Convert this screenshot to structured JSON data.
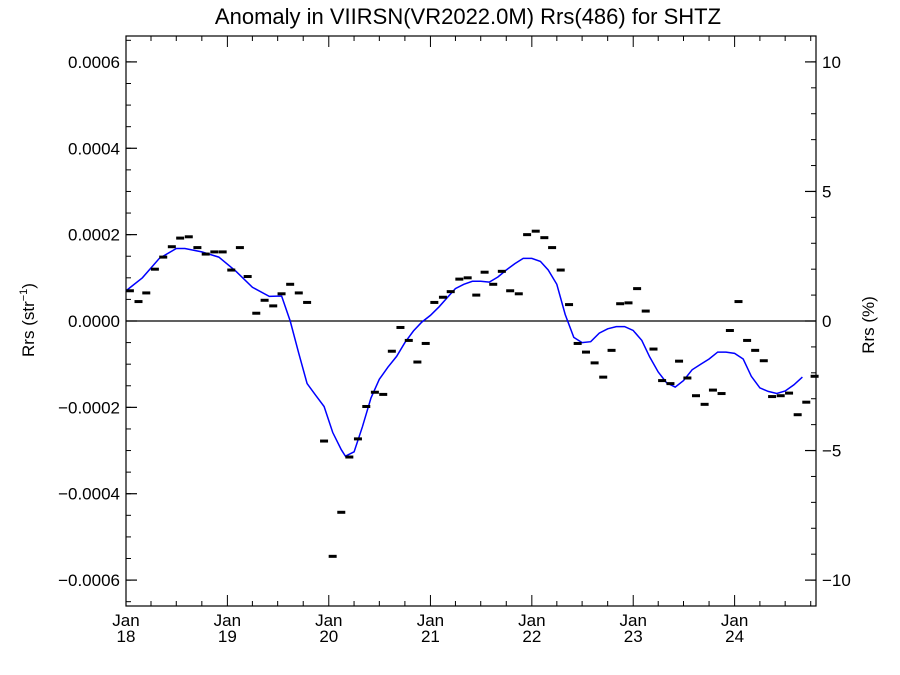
{
  "chart_data": {
    "type": "scatter",
    "title": "Anomaly in VIIRSN(VR2022.0M) Rrs(486) for SHTZ",
    "ylabel_left": {
      "base": "Rrs (str",
      "sup": "−1",
      "tail": ")"
    },
    "ylabel_right": "Rrs (%)",
    "xlabel": "",
    "x_ticks": [
      {
        "x": "2018-01-01",
        "month": "Jan",
        "year": "18"
      },
      {
        "x": "2019-01-01",
        "month": "Jan",
        "year": "19"
      },
      {
        "x": "2020-01-01",
        "month": "Jan",
        "year": "20"
      },
      {
        "x": "2021-01-01",
        "month": "Jan",
        "year": "21"
      },
      {
        "x": "2022-01-01",
        "month": "Jan",
        "year": "22"
      },
      {
        "x": "2023-01-01",
        "month": "Jan",
        "year": "23"
      },
      {
        "x": "2024-01-01",
        "month": "Jan",
        "year": "24"
      }
    ],
    "xlim": [
      "2018-01-01",
      "2024-10-20"
    ],
    "ylim_left": [
      -0.00066,
      0.00066
    ],
    "ylim_right": [
      -11,
      11
    ],
    "y_ticks_left": [
      {
        "v": 0.0006,
        "label": "0.0006"
      },
      {
        "v": 0.0004,
        "label": "0.0004"
      },
      {
        "v": 0.0002,
        "label": "0.0002"
      },
      {
        "v": 0.0,
        "label": "0.0000"
      },
      {
        "v": -0.0002,
        "label": "−0.0002"
      },
      {
        "v": -0.0004,
        "label": "−0.0004"
      },
      {
        "v": -0.0006,
        "label": "−0.0006"
      }
    ],
    "y_ticks_right": [
      {
        "v": 10,
        "label": "10"
      },
      {
        "v": 5,
        "label": "5"
      },
      {
        "v": 0,
        "label": "0"
      },
      {
        "v": -5,
        "label": "−5"
      },
      {
        "v": -10,
        "label": "−10"
      }
    ],
    "zero_line": true,
    "grid": false,
    "series": [
      {
        "kind": "monthly-anomaly",
        "marker": "dash",
        "color": "#000000",
        "points": [
          [
            "2018-01-15",
            7e-05
          ],
          [
            "2018-02-15",
            4.5e-05
          ],
          [
            "2018-03-15",
            6.5e-05
          ],
          [
            "2018-04-15",
            0.00012
          ],
          [
            "2018-05-15",
            0.000148
          ],
          [
            "2018-06-15",
            0.000172
          ],
          [
            "2018-07-15",
            0.000192
          ],
          [
            "2018-08-15",
            0.000195
          ],
          [
            "2018-09-15",
            0.00017
          ],
          [
            "2018-10-15",
            0.000155
          ],
          [
            "2018-11-15",
            0.00016
          ],
          [
            "2018-12-15",
            0.00016
          ],
          [
            "2019-01-15",
            0.000118
          ],
          [
            "2019-02-15",
            0.00017
          ],
          [
            "2019-03-15",
            0.000103
          ],
          [
            "2019-04-15",
            1.8e-05
          ],
          [
            "2019-05-15",
            4.8e-05
          ],
          [
            "2019-06-15",
            3.5e-05
          ],
          [
            "2019-07-15",
            6.3e-05
          ],
          [
            "2019-08-15",
            8.5e-05
          ],
          [
            "2019-09-15",
            6.5e-05
          ],
          [
            "2019-10-15",
            4.3e-05
          ],
          [
            "2019-12-15",
            -0.000278
          ],
          [
            "2020-01-15",
            -0.000545
          ],
          [
            "2020-02-15",
            -0.000443
          ],
          [
            "2020-03-15",
            -0.000315
          ],
          [
            "2020-04-15",
            -0.000273
          ],
          [
            "2020-05-15",
            -0.000198
          ],
          [
            "2020-06-15",
            -0.000165
          ],
          [
            "2020-07-15",
            -0.00017
          ],
          [
            "2020-08-15",
            -7e-05
          ],
          [
            "2020-09-15",
            -1.5e-05
          ],
          [
            "2020-10-15",
            -4.5e-05
          ],
          [
            "2020-11-15",
            -9.5e-05
          ],
          [
            "2020-12-15",
            -5.2e-05
          ],
          [
            "2021-01-15",
            4.3e-05
          ],
          [
            "2021-02-15",
            5.5e-05
          ],
          [
            "2021-03-15",
            6.8e-05
          ],
          [
            "2021-04-15",
            9.7e-05
          ],
          [
            "2021-05-15",
            0.0001
          ],
          [
            "2021-06-15",
            6e-05
          ],
          [
            "2021-07-15",
            0.000113
          ],
          [
            "2021-08-15",
            8.5e-05
          ],
          [
            "2021-09-15",
            0.000115
          ],
          [
            "2021-10-15",
            7e-05
          ],
          [
            "2021-11-15",
            6.3e-05
          ],
          [
            "2021-12-15",
            0.0002
          ],
          [
            "2022-01-15",
            0.000208
          ],
          [
            "2022-02-15",
            0.000193
          ],
          [
            "2022-03-15",
            0.00017
          ],
          [
            "2022-04-15",
            0.000118
          ],
          [
            "2022-05-15",
            3.8e-05
          ],
          [
            "2022-06-15",
            -5.2e-05
          ],
          [
            "2022-07-15",
            -7.2e-05
          ],
          [
            "2022-08-15",
            -9.7e-05
          ],
          [
            "2022-09-15",
            -0.00013
          ],
          [
            "2022-10-15",
            -6.8e-05
          ],
          [
            "2022-11-15",
            4e-05
          ],
          [
            "2022-12-15",
            4.2e-05
          ],
          [
            "2023-01-15",
            7.5e-05
          ],
          [
            "2023-02-15",
            2.3e-05
          ],
          [
            "2023-03-15",
            -6.5e-05
          ],
          [
            "2023-04-15",
            -0.000138
          ],
          [
            "2023-05-15",
            -0.000145
          ],
          [
            "2023-06-15",
            -9.3e-05
          ],
          [
            "2023-07-15",
            -0.000132
          ],
          [
            "2023-08-15",
            -0.000173
          ],
          [
            "2023-09-15",
            -0.000193
          ],
          [
            "2023-10-15",
            -0.00016
          ],
          [
            "2023-11-15",
            -0.000168
          ],
          [
            "2023-12-15",
            -2.2e-05
          ],
          [
            "2024-01-15",
            4.5e-05
          ],
          [
            "2024-02-15",
            -4.5e-05
          ],
          [
            "2024-03-15",
            -6.8e-05
          ],
          [
            "2024-04-15",
            -9.2e-05
          ],
          [
            "2024-05-15",
            -0.000175
          ],
          [
            "2024-06-15",
            -0.000173
          ],
          [
            "2024-07-15",
            -0.000167
          ],
          [
            "2024-08-15",
            -0.000217
          ],
          [
            "2024-09-15",
            -0.000188
          ],
          [
            "2024-10-15",
            -0.000128
          ]
        ]
      },
      {
        "kind": "smoothed",
        "marker": "line",
        "color": "#0000ff",
        "points": [
          [
            "2018-01-01",
            7e-05
          ],
          [
            "2018-03-01",
            0.0001
          ],
          [
            "2018-05-01",
            0.000145
          ],
          [
            "2018-07-01",
            0.000168
          ],
          [
            "2018-08-01",
            0.000168
          ],
          [
            "2018-10-01",
            0.00016
          ],
          [
            "2018-12-01",
            0.000148
          ],
          [
            "2019-02-01",
            0.000115
          ],
          [
            "2019-04-01",
            7.8e-05
          ],
          [
            "2019-06-01",
            5.7e-05
          ],
          [
            "2019-07-15",
            5.8e-05
          ],
          [
            "2019-08-15",
            0.0
          ],
          [
            "2019-09-15",
            -7.5e-05
          ],
          [
            "2019-10-15",
            -0.000145
          ],
          [
            "2019-11-15",
            -0.000172
          ],
          [
            "2019-12-15",
            -0.000198
          ],
          [
            "2020-01-15",
            -0.000258
          ],
          [
            "2020-02-15",
            -0.000298
          ],
          [
            "2020-03-01",
            -0.000313
          ],
          [
            "2020-04-01",
            -0.000303
          ],
          [
            "2020-05-01",
            -0.000245
          ],
          [
            "2020-06-01",
            -0.000178
          ],
          [
            "2020-07-01",
            -0.000135
          ],
          [
            "2020-08-01",
            -0.000107
          ],
          [
            "2020-09-01",
            -8.2e-05
          ],
          [
            "2020-10-01",
            -5e-05
          ],
          [
            "2020-11-01",
            -2.3e-05
          ],
          [
            "2020-12-01",
            -2.5e-06
          ],
          [
            "2021-01-01",
            1.3e-05
          ],
          [
            "2021-02-01",
            3.3e-05
          ],
          [
            "2021-03-01",
            5.3e-05
          ],
          [
            "2021-04-01",
            7.5e-05
          ],
          [
            "2021-05-01",
            8.5e-05
          ],
          [
            "2021-06-01",
            9.2e-05
          ],
          [
            "2021-07-01",
            9.2e-05
          ],
          [
            "2021-08-01",
            9e-05
          ],
          [
            "2021-09-01",
            0.000102
          ],
          [
            "2021-10-01",
            0.000118
          ],
          [
            "2021-11-01",
            0.000133
          ],
          [
            "2021-12-01",
            0.000145
          ],
          [
            "2022-01-01",
            0.000145
          ],
          [
            "2022-02-01",
            0.000138
          ],
          [
            "2022-03-01",
            0.000118
          ],
          [
            "2022-04-01",
            8.5e-05
          ],
          [
            "2022-05-01",
            1.5e-05
          ],
          [
            "2022-06-01",
            -3.8e-05
          ],
          [
            "2022-07-01",
            -5e-05
          ],
          [
            "2022-08-01",
            -4.8e-05
          ],
          [
            "2022-09-01",
            -2.8e-05
          ],
          [
            "2022-10-01",
            -1.8e-05
          ],
          [
            "2022-11-01",
            -1.3e-05
          ],
          [
            "2022-12-01",
            -1.3e-05
          ],
          [
            "2023-01-01",
            -2.2e-05
          ],
          [
            "2023-02-01",
            -4.5e-05
          ],
          [
            "2023-03-01",
            -8.3e-05
          ],
          [
            "2023-04-01",
            -0.000118
          ],
          [
            "2023-05-01",
            -0.000143
          ],
          [
            "2023-06-01",
            -0.000153
          ],
          [
            "2023-07-01",
            -0.000138
          ],
          [
            "2023-08-01",
            -0.000113
          ],
          [
            "2023-09-01",
            -0.0001
          ],
          [
            "2023-10-01",
            -8.8e-05
          ],
          [
            "2023-11-01",
            -7.2e-05
          ],
          [
            "2023-12-01",
            -7.2e-05
          ],
          [
            "2024-01-01",
            -7.5e-05
          ],
          [
            "2024-02-01",
            -8.8e-05
          ],
          [
            "2024-03-01",
            -0.000128
          ],
          [
            "2024-04-01",
            -0.000155
          ],
          [
            "2024-05-01",
            -0.000163
          ],
          [
            "2024-06-01",
            -0.000168
          ],
          [
            "2024-07-01",
            -0.000162
          ],
          [
            "2024-08-01",
            -0.000148
          ],
          [
            "2024-09-01",
            -0.00013
          ]
        ]
      }
    ]
  }
}
